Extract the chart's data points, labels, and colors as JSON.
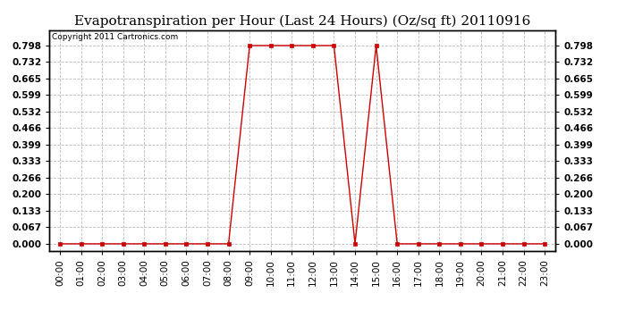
{
  "title": "Evapotranspiration per Hour (Last 24 Hours) (Oz/sq ft) 20110916",
  "copyright_text": "Copyright 2011 Cartronics.com",
  "line_color": "#cc0000",
  "marker": "s",
  "marker_size": 2.5,
  "background_color": "#ffffff",
  "plot_bg_color": "#ffffff",
  "grid_color": "#bbbbbb",
  "hours": [
    0,
    1,
    2,
    3,
    4,
    5,
    6,
    7,
    8,
    9,
    10,
    11,
    12,
    13,
    14,
    15,
    16,
    17,
    18,
    19,
    20,
    21,
    22,
    23
  ],
  "values": [
    0.0,
    0.0,
    0.0,
    0.0,
    0.0,
    0.0,
    0.0,
    0.0,
    0.0,
    0.798,
    0.798,
    0.798,
    0.798,
    0.798,
    0.0,
    0.798,
    0.0,
    0.0,
    0.0,
    0.0,
    0.0,
    0.0,
    0.0,
    0.0
  ],
  "yticks": [
    0.0,
    0.067,
    0.133,
    0.2,
    0.266,
    0.333,
    0.399,
    0.466,
    0.532,
    0.599,
    0.665,
    0.732,
    0.798
  ],
  "ylim": [
    -0.03,
    0.86
  ],
  "xlim": [
    -0.5,
    23.5
  ],
  "title_fontsize": 11,
  "tick_fontsize": 7.5,
  "copyright_fontsize": 6.5
}
